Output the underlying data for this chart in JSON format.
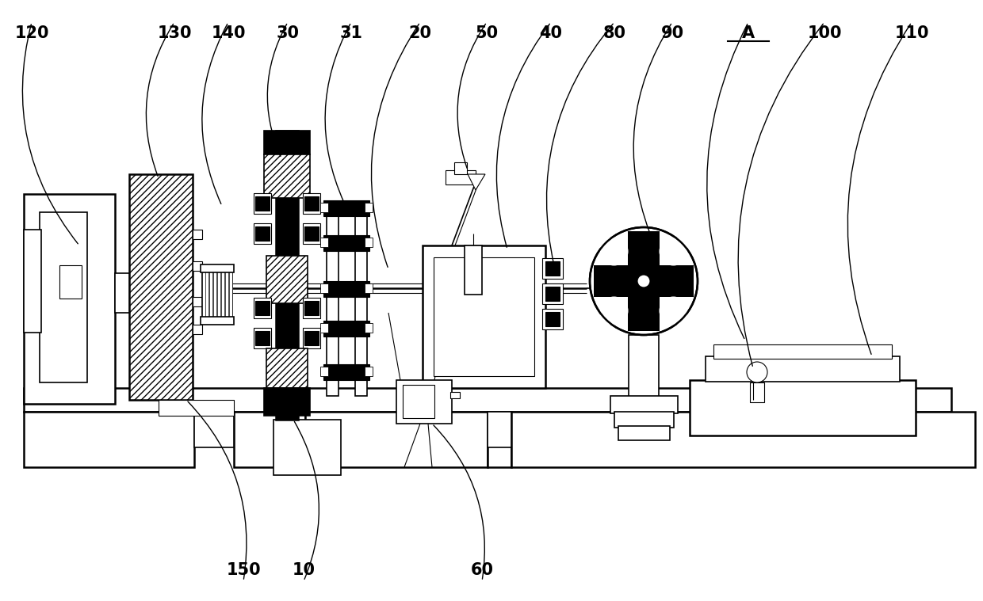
{
  "bg_color": "#ffffff",
  "line_color": "#000000",
  "label_fontsize": 15,
  "figsize": [
    12.4,
    7.59
  ],
  "dpi": 100,
  "labels_top": [
    [
      "120",
      0.03
    ],
    [
      "130",
      0.178
    ],
    [
      "140",
      0.232
    ],
    [
      "30",
      0.295
    ],
    [
      "31",
      0.358
    ],
    [
      "20",
      0.427
    ],
    [
      "50",
      0.495
    ],
    [
      "40",
      0.558
    ],
    [
      "80",
      0.628
    ],
    [
      "90",
      0.7
    ],
    [
      "A",
      0.765
    ],
    [
      "100",
      0.832
    ],
    [
      "110",
      0.91
    ]
  ],
  "labels_bot": [
    [
      "150",
      0.248
    ],
    [
      "10",
      0.308
    ],
    [
      "60",
      0.49
    ]
  ]
}
